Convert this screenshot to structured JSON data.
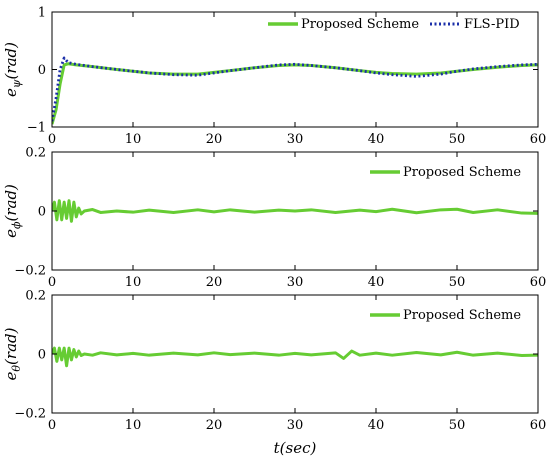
{
  "chart_data": [
    {
      "type": "line",
      "ylabel_main": "e",
      "ylabel_sub": "ψ",
      "ylabel_unit": "(rad)",
      "xlim": [
        0,
        60
      ],
      "ylim": [
        -1,
        1
      ],
      "xticks": [
        "0",
        "10",
        "20",
        "30",
        "40",
        "50",
        "60"
      ],
      "yticks": [
        {
          "value": -1,
          "label": "−1"
        },
        {
          "value": 0,
          "label": "0"
        },
        {
          "value": 1,
          "label": "1"
        }
      ],
      "legend_position": "top-right",
      "series": [
        {
          "name": "Proposed Scheme",
          "color": "#66cc33",
          "style": "solid",
          "x": [
            0,
            0.5,
            1,
            1.5,
            2,
            3,
            5,
            8,
            10,
            12,
            15,
            18,
            20,
            22,
            25,
            28,
            30,
            32,
            35,
            38,
            40,
            42,
            45,
            48,
            50,
            52,
            55,
            58,
            60
          ],
          "y": [
            -0.95,
            -0.7,
            -0.25,
            0.08,
            0.1,
            0.08,
            0.05,
            0.0,
            -0.03,
            -0.06,
            -0.08,
            -0.08,
            -0.05,
            -0.02,
            0.03,
            0.07,
            0.08,
            0.07,
            0.03,
            -0.02,
            -0.05,
            -0.07,
            -0.08,
            -0.06,
            -0.03,
            0.0,
            0.04,
            0.07,
            0.08
          ]
        },
        {
          "name": "FLS-PID",
          "color": "#1a2ea8",
          "style": "dotted",
          "x": [
            0,
            0.5,
            1,
            1.5,
            2,
            3,
            5,
            8,
            10,
            12,
            15,
            18,
            20,
            22,
            25,
            28,
            30,
            32,
            35,
            38,
            40,
            42,
            45,
            48,
            50,
            52,
            55,
            58,
            60
          ],
          "y": [
            -0.9,
            -0.5,
            0.0,
            0.2,
            0.12,
            0.09,
            0.05,
            0.0,
            -0.03,
            -0.06,
            -0.09,
            -0.1,
            -0.06,
            -0.02,
            0.03,
            0.08,
            0.09,
            0.07,
            0.03,
            -0.02,
            -0.06,
            -0.09,
            -0.12,
            -0.08,
            -0.03,
            0.01,
            0.05,
            0.08,
            0.09
          ]
        }
      ]
    },
    {
      "type": "line",
      "ylabel_main": "e",
      "ylabel_sub": "ϕ",
      "ylabel_unit": "(rad)",
      "xlim": [
        0,
        60
      ],
      "ylim": [
        -0.2,
        0.2
      ],
      "xticks": [
        "0",
        "10",
        "20",
        "30",
        "40",
        "50",
        "60"
      ],
      "yticks": [
        {
          "value": -0.2,
          "label": "−0.2"
        },
        {
          "value": 0,
          "label": "0"
        },
        {
          "value": 0.2,
          "label": "0.2"
        }
      ],
      "legend_position": "top-right",
      "series": [
        {
          "name": "Proposed Scheme",
          "color": "#66cc33",
          "style": "solid",
          "x": [
            0,
            0.3,
            0.6,
            0.9,
            1.2,
            1.5,
            1.8,
            2.1,
            2.4,
            2.7,
            3.0,
            3.3,
            3.6,
            4,
            5,
            6,
            8,
            10,
            12,
            15,
            18,
            20,
            22,
            25,
            28,
            30,
            32,
            35,
            38,
            40,
            42,
            45,
            48,
            50,
            52,
            55,
            58,
            60
          ],
          "y": [
            0.0,
            0.03,
            -0.03,
            0.035,
            -0.03,
            0.03,
            -0.025,
            0.035,
            -0.035,
            0.03,
            -0.02,
            0.01,
            -0.01,
            0.0,
            0.005,
            -0.005,
            0.0,
            -0.004,
            0.003,
            -0.005,
            0.004,
            -0.003,
            0.004,
            -0.004,
            0.003,
            0.0,
            0.004,
            -0.005,
            0.003,
            -0.002,
            0.006,
            -0.006,
            0.004,
            0.006,
            -0.005,
            0.004,
            -0.007,
            -0.008
          ]
        }
      ]
    },
    {
      "type": "line",
      "ylabel_main": "e",
      "ylabel_sub": "θ",
      "ylabel_unit": "(rad)",
      "xlabel": "t(sec)",
      "xlim": [
        0,
        60
      ],
      "ylim": [
        -0.2,
        0.2
      ],
      "xticks": [
        "0",
        "10",
        "20",
        "30",
        "40",
        "50",
        "60"
      ],
      "yticks": [
        {
          "value": -0.2,
          "label": "−0.2"
        },
        {
          "value": 0,
          "label": "0"
        },
        {
          "value": 0.2,
          "label": "0.2"
        }
      ],
      "legend_position": "top-right",
      "series": [
        {
          "name": "Proposed Scheme",
          "color": "#66cc33",
          "style": "solid",
          "x": [
            0,
            0.3,
            0.6,
            0.9,
            1.2,
            1.5,
            1.8,
            2.1,
            2.4,
            2.7,
            3.0,
            3.3,
            3.6,
            4,
            5,
            6,
            8,
            10,
            12,
            15,
            18,
            20,
            22,
            25,
            28,
            30,
            32,
            35,
            36,
            37,
            38,
            40,
            42,
            45,
            48,
            50,
            52,
            55,
            58,
            60
          ],
          "y": [
            0.0,
            0.02,
            -0.025,
            0.02,
            -0.02,
            0.02,
            -0.04,
            0.02,
            -0.02,
            0.015,
            -0.01,
            0.01,
            -0.005,
            0.0,
            -0.004,
            0.004,
            -0.003,
            0.002,
            -0.004,
            0.003,
            -0.003,
            0.004,
            -0.002,
            0.003,
            -0.004,
            0.002,
            -0.003,
            0.004,
            -0.015,
            0.01,
            -0.004,
            0.003,
            -0.004,
            0.005,
            -0.003,
            0.006,
            -0.004,
            0.003,
            -0.005,
            -0.004
          ]
        }
      ]
    }
  ]
}
